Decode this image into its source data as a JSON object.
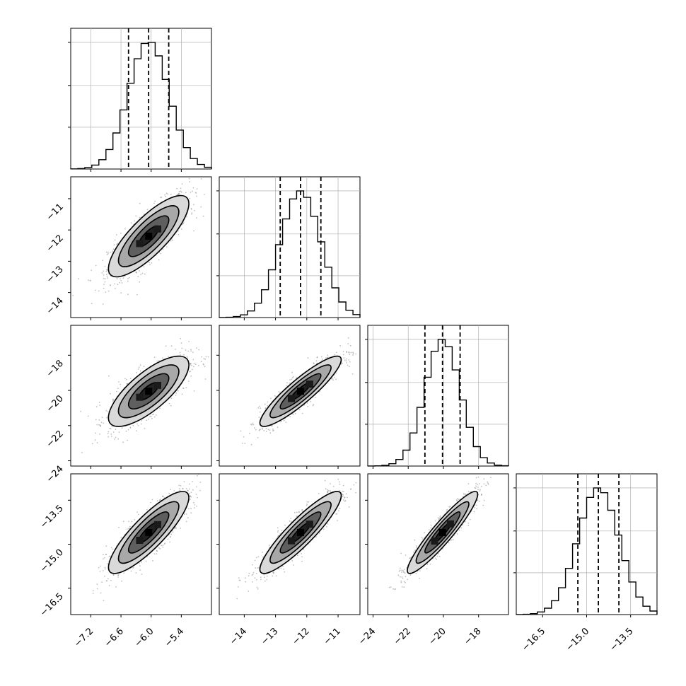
{
  "chart_data": {
    "type": "corner",
    "params": [
      {
        "range": [
          -7.6,
          -4.8
        ],
        "ticks": [
          -7.2,
          -6.6,
          -6.0,
          -5.4
        ],
        "tick_labels": [
          "−7.2",
          "−6.6",
          "−6.0",
          "−5.4"
        ],
        "mean": -6.05,
        "sd": 0.4,
        "quantiles": [
          -6.45,
          -6.05,
          -5.65
        ]
      },
      {
        "range": [
          -14.8,
          -10.3
        ],
        "ticks": [
          -14,
          -13,
          -12,
          -11
        ],
        "tick_labels": [
          "−14",
          "−13",
          "−12",
          "−11"
        ],
        "mean": -12.2,
        "sd": 0.65,
        "quantiles": [
          -12.85,
          -12.2,
          -11.55
        ]
      },
      {
        "range": [
          -24.3,
          -16.3
        ],
        "ticks": [
          -24,
          -22,
          -20,
          -18
        ],
        "tick_labels": [
          "−24",
          "−22",
          "−20",
          "−18"
        ],
        "mean": -20.05,
        "sd": 1.0,
        "quantiles": [
          -21.05,
          -20.05,
          -19.05
        ]
      },
      {
        "range": [
          -17.4,
          -12.6
        ],
        "ticks": [
          -16.5,
          -15.0,
          -13.5
        ],
        "tick_labels": [
          "−16.5",
          "−15.0",
          "−13.5"
        ],
        "mean": -14.6,
        "sd": 0.7,
        "quantiles": [
          -15.3,
          -14.6,
          -13.9
        ]
      }
    ],
    "correlations": [
      [
        1.0,
        0.8,
        0.75,
        0.85
      ],
      [
        0.8,
        1.0,
        0.9,
        0.9
      ],
      [
        0.75,
        0.9,
        1.0,
        0.93
      ],
      [
        0.85,
        0.9,
        0.93,
        1.0
      ]
    ],
    "histogram_ticks": [
      0.33,
      0.66,
      1.0
    ],
    "bins": 20,
    "contour_levels_sigma": [
      0.5,
      1.0,
      1.5,
      2.0
    ],
    "grid": true,
    "colors": {
      "contour": "#000000",
      "scatter": "#8c8c8c",
      "hist": "#000000",
      "grid": "#b0b0b0"
    }
  }
}
